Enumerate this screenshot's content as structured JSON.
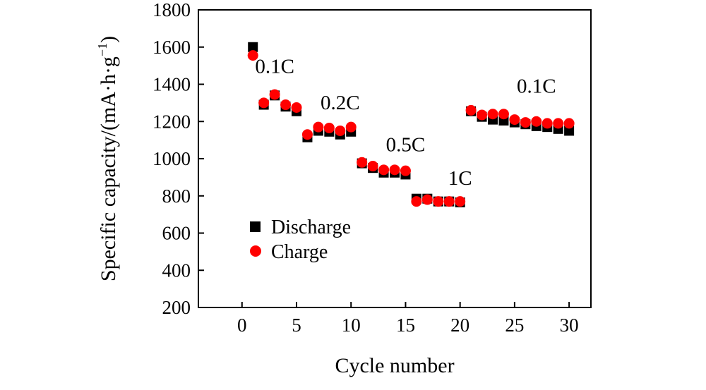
{
  "chart_data": {
    "type": "scatter",
    "title": "",
    "xlabel": "Cycle number",
    "ylabel": {
      "main": "Specific capacity/(mA·h·g",
      "sup": "−1",
      "close": ")"
    },
    "xlim": [
      -4,
      32
    ],
    "ylim": [
      200,
      1800
    ],
    "xticks": [
      0,
      5,
      10,
      15,
      20,
      25,
      30
    ],
    "yticks": [
      200,
      400,
      600,
      800,
      1000,
      1200,
      1400,
      1600,
      1800
    ],
    "legend_position": "left-bottom",
    "series": [
      {
        "name": "Discharge",
        "marker": "square",
        "color": "#000000",
        "x": [
          1,
          2,
          3,
          4,
          5,
          6,
          7,
          8,
          9,
          10,
          11,
          12,
          13,
          14,
          15,
          16,
          17,
          18,
          19,
          20,
          21,
          22,
          23,
          24,
          25,
          26,
          27,
          28,
          29,
          30
        ],
        "values": [
          1600,
          1290,
          1340,
          1280,
          1255,
          1115,
          1150,
          1145,
          1130,
          1145,
          975,
          950,
          925,
          925,
          915,
          785,
          785,
          770,
          770,
          765,
          1255,
          1225,
          1210,
          1205,
          1195,
          1185,
          1175,
          1170,
          1160,
          1150
        ]
      },
      {
        "name": "Charge",
        "marker": "circle",
        "color": "#ff0000",
        "x": [
          1,
          2,
          3,
          4,
          5,
          6,
          7,
          8,
          9,
          10,
          11,
          12,
          13,
          14,
          15,
          16,
          17,
          18,
          19,
          20,
          21,
          22,
          23,
          24,
          25,
          26,
          27,
          28,
          29,
          30
        ],
        "values": [
          1555,
          1300,
          1345,
          1290,
          1275,
          1130,
          1170,
          1165,
          1150,
          1170,
          980,
          960,
          940,
          940,
          935,
          770,
          780,
          770,
          770,
          770,
          1260,
          1235,
          1240,
          1240,
          1210,
          1195,
          1200,
          1190,
          1190,
          1190
        ]
      }
    ],
    "annotations": [
      {
        "text": "0.1C",
        "x": 3,
        "y": 1460
      },
      {
        "text": "0.2C",
        "x": 9,
        "y": 1265
      },
      {
        "text": "0.5C",
        "x": 15,
        "y": 1040
      },
      {
        "text": "1C",
        "x": 20,
        "y": 860
      },
      {
        "text": "0.1C",
        "x": 27,
        "y": 1355
      }
    ]
  }
}
